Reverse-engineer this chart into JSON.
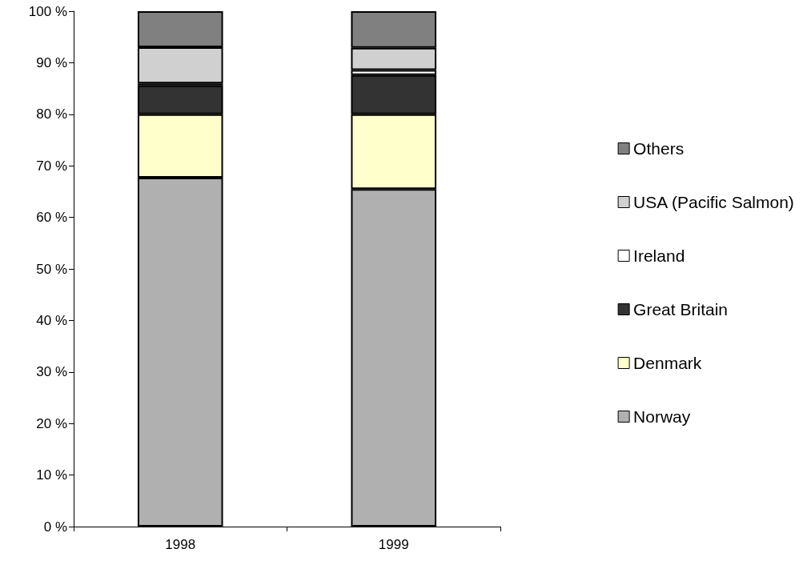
{
  "chart_data": {
    "type": "bar",
    "stacked": true,
    "categories": [
      "1998",
      "1999"
    ],
    "series": [
      {
        "name": "Norway",
        "color": "#b0b0b0",
        "values": [
          67.7,
          65.5
        ]
      },
      {
        "name": "Denmark",
        "color": "#ffffcc",
        "values": [
          12.3,
          14.5
        ]
      },
      {
        "name": "Great Britain",
        "color": "#333333",
        "values": [
          5.6,
          7.6
        ]
      },
      {
        "name": "Ireland",
        "color": "#ffffff",
        "values": [
          0.4,
          1.0
        ]
      },
      {
        "name": "USA (Pacific Salmon)",
        "color": "#d0d0d0",
        "values": [
          7.0,
          4.3
        ]
      },
      {
        "name": "Others",
        "color": "#808080",
        "values": [
          7.0,
          7.1
        ]
      }
    ],
    "ylim": [
      0,
      100
    ],
    "yticks": [
      {
        "value": 0,
        "label": "0 %"
      },
      {
        "value": 10,
        "label": "10 %"
      },
      {
        "value": 20,
        "label": "20 %"
      },
      {
        "value": 30,
        "label": "30 %"
      },
      {
        "value": 40,
        "label": "40 %"
      },
      {
        "value": 50,
        "label": "50 %"
      },
      {
        "value": 60,
        "label": "60 %"
      },
      {
        "value": 70,
        "label": "70 %"
      },
      {
        "value": 80,
        "label": "80 %"
      },
      {
        "value": 90,
        "label": "90 %"
      },
      {
        "value": 100,
        "label": "100 %"
      }
    ],
    "grid": false,
    "legend": "right"
  }
}
